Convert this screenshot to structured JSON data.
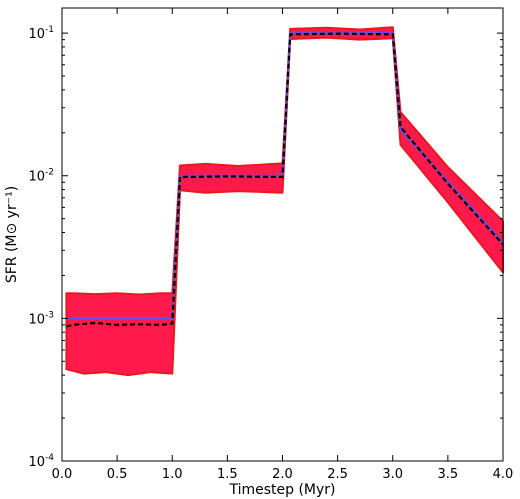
{
  "chart_data": {
    "type": "line",
    "title": "",
    "xlabel": "Timestep (Myr)",
    "ylabel": "SFR (M⊙ yr⁻¹)",
    "xlim": [
      0.0,
      4.0
    ],
    "ylim": [
      0.0001,
      0.15
    ],
    "yscale": "log",
    "grid": false,
    "xticks": [
      0.0,
      0.5,
      1.0,
      1.5,
      2.0,
      2.5,
      3.0,
      3.5,
      4.0
    ],
    "xtick_labels": [
      "0.0",
      "0.5",
      "1.0",
      "1.5",
      "2.0",
      "2.5",
      "3.0",
      "3.5",
      "4.0"
    ],
    "yticks": [
      0.0001,
      0.001,
      0.01,
      0.1
    ],
    "ytick_labels": [
      {
        "base": "10",
        "exp": "-4"
      },
      {
        "base": "10",
        "exp": "-3"
      },
      {
        "base": "10",
        "exp": "-2"
      },
      {
        "base": "10",
        "exp": "-1"
      }
    ],
    "colors": {
      "band": "#ff1a4b",
      "band_edge": "#e8191f",
      "true": "#5555ee",
      "median": "#000000"
    },
    "series": [
      {
        "style": "solid",
        "x": [
          0.04,
          1.0,
          1.0,
          1.07,
          2.0,
          2.0,
          2.07,
          3.0,
          3.0,
          3.07,
          4.0
        ],
        "y": [
          0.001,
          0.001,
          0.001,
          0.01,
          0.01,
          0.01,
          0.1,
          0.1,
          0.1,
          0.021,
          0.0034
        ]
      },
      {
        "style": "dashed",
        "x": [
          0.04,
          0.1,
          0.3,
          0.5,
          0.7,
          0.9,
          1.0,
          1.07,
          1.5,
          2.0,
          2.07,
          2.5,
          3.0,
          3.07,
          3.5,
          4.0
        ],
        "y": [
          0.00088,
          0.0009,
          0.00093,
          0.0009,
          0.00091,
          0.0009,
          0.00092,
          0.0098,
          0.0099,
          0.0098,
          0.098,
          0.099,
          0.098,
          0.022,
          0.0088,
          0.0033
        ]
      }
    ],
    "band": {
      "upper": {
        "x": [
          0.04,
          0.1,
          0.3,
          0.5,
          0.7,
          0.9,
          1.0,
          1.07,
          1.3,
          1.6,
          2.0,
          2.07,
          2.4,
          2.7,
          3.0,
          3.07,
          3.5,
          4.0
        ],
        "y": [
          0.0015,
          0.0015,
          0.00148,
          0.0015,
          0.00147,
          0.0015,
          0.0015,
          0.0118,
          0.0121,
          0.0117,
          0.0122,
          0.107,
          0.109,
          0.106,
          0.11,
          0.028,
          0.0115,
          0.0048
        ]
      },
      "lower": {
        "x": [
          0.04,
          0.2,
          0.4,
          0.6,
          0.8,
          1.0,
          1.07,
          1.3,
          1.6,
          2.0,
          2.07,
          2.4,
          2.7,
          3.0,
          3.07,
          3.5,
          4.0
        ],
        "y": [
          0.00044,
          0.00041,
          0.00042,
          0.0004,
          0.00042,
          0.00041,
          0.0079,
          0.0076,
          0.0078,
          0.0076,
          0.091,
          0.093,
          0.09,
          0.092,
          0.0165,
          0.0065,
          0.0021
        ]
      }
    }
  }
}
